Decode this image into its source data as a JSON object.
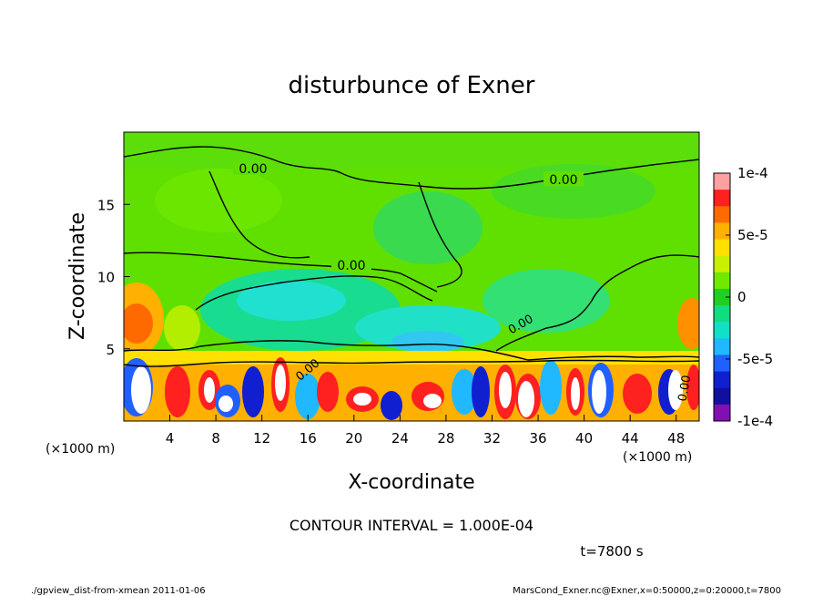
{
  "chart_data": {
    "type": "heatmap",
    "title": "disturbunce of Exner",
    "xlabel": "X-coordinate",
    "ylabel": "Z-coordinate",
    "x_unit_left": "(×1000 m)",
    "x_unit_right": "(×1000 m)",
    "xlim": [
      0,
      50
    ],
    "ylim": [
      0,
      20
    ],
    "x_ticks": [
      4,
      8,
      12,
      16,
      20,
      24,
      28,
      32,
      36,
      40,
      44,
      48
    ],
    "y_ticks": [
      5,
      10,
      15
    ],
    "grid": false,
    "contour_labels": [
      "0.00",
      "0.00",
      "0.00",
      "0.00",
      "0.00",
      "0.00"
    ],
    "colorbar": {
      "position": "right",
      "range": [
        -0.0001,
        0.0001
      ],
      "tick_labels": [
        "1e-4",
        "5e-5",
        "0",
        "-5e-5",
        "-1e-4"
      ],
      "tick_values": [
        0.0001,
        5e-05,
        0,
        -5e-05,
        -0.0001
      ],
      "colors": [
        "#ffa0a0",
        "#ff2020",
        "#ff6a00",
        "#ffb000",
        "#ffe000",
        "#c8f000",
        "#70e800",
        "#20d020",
        "#10dc80",
        "#10e0c8",
        "#20b8ff",
        "#2060ff",
        "#1020d0",
        "#1010a0",
        "#8010b0"
      ]
    },
    "contour_interval_text": "CONTOUR INTERVAL = 1.000E-04",
    "time_text": "t=7800 s",
    "footer_left": "./gpview_dist-from-xmean  2011-01-06",
    "footer_right": "MarsCond_Exner.nc@Exner,x=0:50000,z=0:20000,t=7800"
  }
}
